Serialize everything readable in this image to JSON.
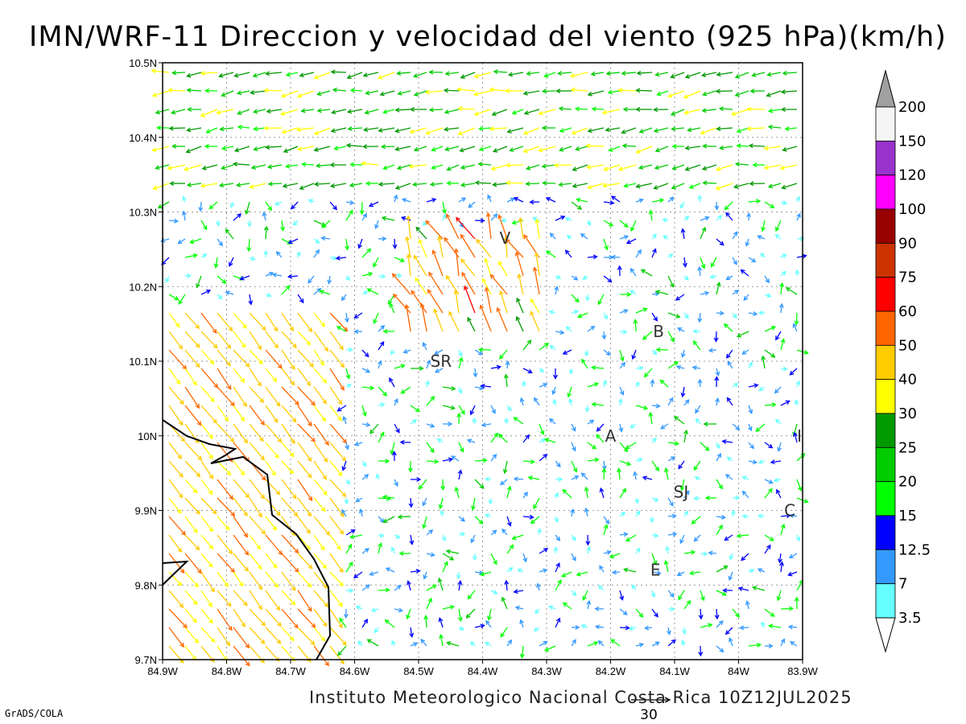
{
  "title": "IMN/WRF-11 Direccion y velocidad del viento (925 hPa)(km/h)",
  "footer": "Instituto Meteorologico Nacional Costa Rica 10Z12JUL2025",
  "credit": "GrADS/COLA",
  "reference_vector": {
    "label": "30",
    "value": 30
  },
  "axes": {
    "x_ticks": [
      "84.9W",
      "84.8W",
      "84.7W",
      "84.6W",
      "84.5W",
      "84.4W",
      "84.3W",
      "84.2W",
      "84.1W",
      "84W",
      "83.9W"
    ],
    "y_ticks": [
      "10.5N",
      "10.4N",
      "10.3N",
      "10.2N",
      "10.1N",
      "10N",
      "9.9N",
      "9.8N",
      "9.7N"
    ],
    "lon_range": [
      -84.9,
      -83.9
    ],
    "lat_range": [
      9.7,
      10.5
    ],
    "grid": true
  },
  "towns": [
    {
      "label": "V",
      "lon": -84.365,
      "lat": 10.265
    },
    {
      "label": "SR",
      "lon": -84.465,
      "lat": 10.1
    },
    {
      "label": "B",
      "lon": -84.125,
      "lat": 10.14
    },
    {
      "label": "A",
      "lon": -84.2,
      "lat": 10.0
    },
    {
      "label": "SJ",
      "lon": -84.09,
      "lat": 9.925
    },
    {
      "label": "C",
      "lon": -83.92,
      "lat": 9.9
    },
    {
      "label": "E",
      "lon": -84.13,
      "lat": 9.82
    },
    {
      "label": "I",
      "lon": -83.905,
      "lat": 10.0
    }
  ],
  "colorbar": {
    "labels": [
      "200",
      "150",
      "120",
      "100",
      "90",
      "75",
      "60",
      "50",
      "40",
      "30",
      "25",
      "20",
      "15",
      "12.5",
      "7",
      "3.5"
    ],
    "colors": [
      "#f5f5f5",
      "#9a32cd",
      "#ff00ff",
      "#990000",
      "#cc3300",
      "#ff0000",
      "#ff6600",
      "#ffcc00",
      "#ffff00",
      "#009900",
      "#00cc00",
      "#00ff00",
      "#0000ff",
      "#3399ff",
      "#66ffff"
    ],
    "top_triangle": "#a0a0a0",
    "bottom_triangle": "#ffffff"
  }
}
